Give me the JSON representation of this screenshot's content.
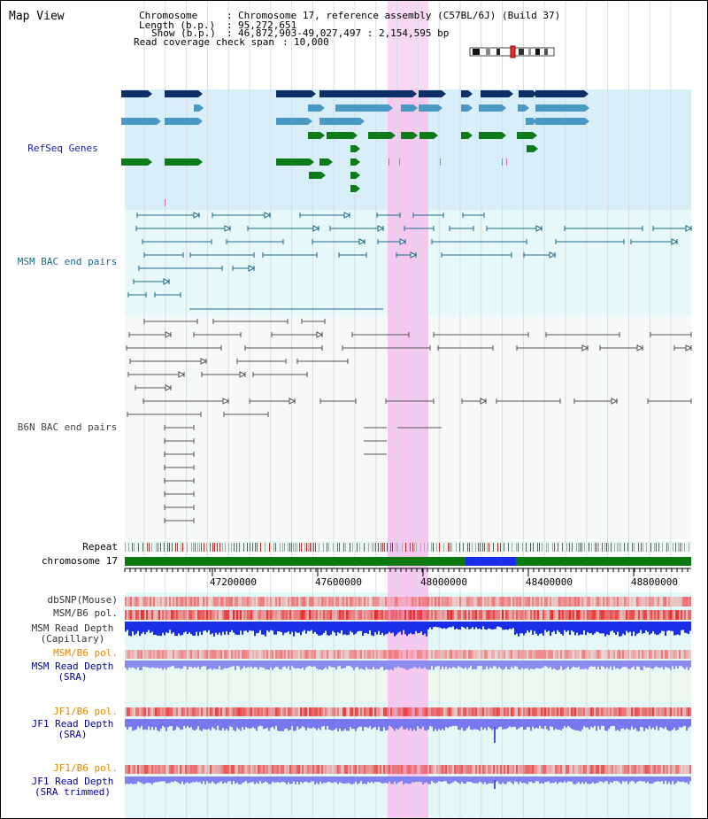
{
  "page": {
    "title": "Map View",
    "header": {
      "chromosome_label": "Chromosome",
      "chromosome_value": "Chromosome 17, reference assembly (C57BL/6J) (Build 37)",
      "length_label": "Length (b.p.)",
      "length_value": "95,272,651",
      "show_label": "Show (b.p.)",
      "show_value": "46,872,903-49,027,497 : 2,154,595 bp",
      "coverage_label": "Read coverage check span",
      "coverage_value": "10,000"
    }
  },
  "tracks": {
    "refseq": {
      "label": "RefSeq Genes"
    },
    "msm_bac": {
      "label": "MSM BAC end pairs"
    },
    "b6n_bac": {
      "label": "B6N BAC end pairs"
    },
    "repeat": {
      "label": "Repeat"
    },
    "chromosome": {
      "label": "chromosome 17"
    },
    "dbsnp": {
      "label": "dbSNP(Mouse)"
    },
    "msm_b6_pol": {
      "label": "MSM/B6 pol."
    },
    "msm_depth_cap": {
      "label_line1": "MSM Read Depth",
      "label_line2": "(Capillary)"
    },
    "msm_b6_pol2": {
      "label": "MSM/B6 pol."
    },
    "msm_depth_sra": {
      "label_line1": "MSM Read Depth",
      "label_line2": "(SRA)"
    },
    "jf1_b6_pol": {
      "label": "JF1/B6 pol."
    },
    "jf1_depth_sra": {
      "label_line1": "JF1 Read Depth",
      "label_line2": "(SRA)"
    },
    "jf1_b6_pol2": {
      "label": "JF1/B6 pol."
    },
    "jf1_depth_trim": {
      "label_line1": "JF1 Read Depth",
      "label_line2": "(SRA trimmed)"
    }
  },
  "axis": {
    "ticks": [
      "47200000",
      "47600000",
      "48000000",
      "48400000",
      "48800000"
    ]
  },
  "colors": {
    "refseq_dark": "#0b2f66",
    "refseq_light": "#4a98c4",
    "refseq_green": "#0f7a1a",
    "msm_bac": "#1a6b8a",
    "b6n_bac": "#555555",
    "highlight": "#f6c8f0",
    "label_orange": "#e08a00",
    "label_blue": "#0000a0"
  }
}
